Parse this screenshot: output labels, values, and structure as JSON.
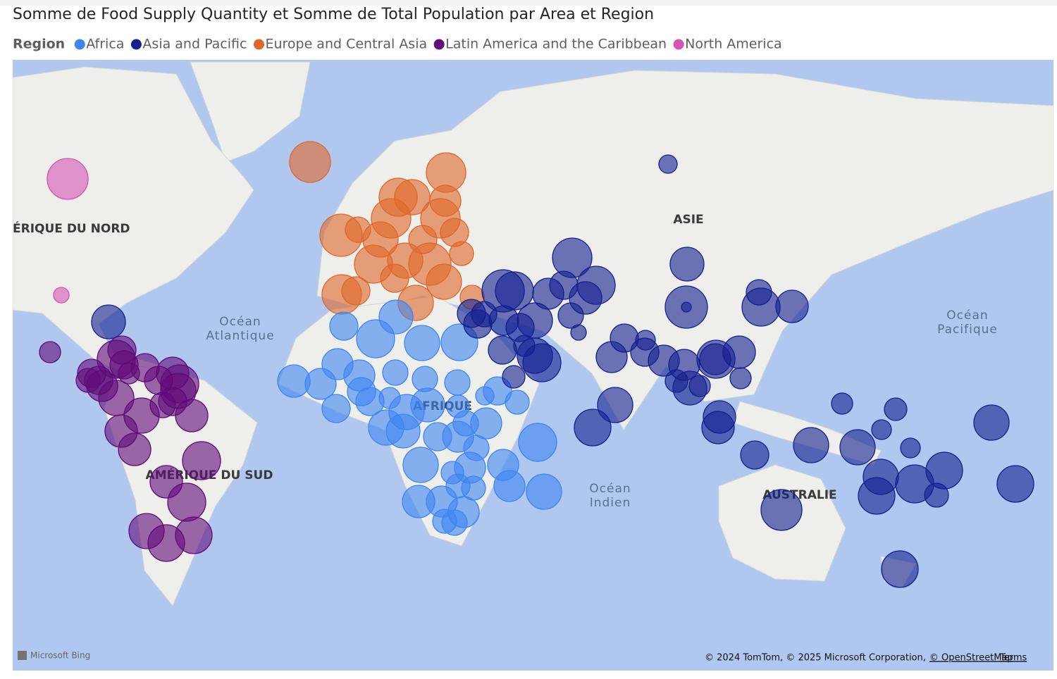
{
  "header": {
    "title": "Somme de Food Supply Quantity et Somme de Total Population par Area et Region"
  },
  "legend": {
    "title": "Region",
    "items": [
      {
        "name": "Africa",
        "color": "#3d86f2"
      },
      {
        "name": "Asia and Pacific",
        "color": "#14208f"
      },
      {
        "name": "Europe and Central Asia",
        "color": "#e0672a"
      },
      {
        "name": "Latin America and the Caribbean",
        "color": "#600a78"
      },
      {
        "name": "North America",
        "color": "#d455b3"
      }
    ]
  },
  "map": {
    "continents": [
      "ÉRIQUE DU NORD",
      "ASIE",
      "AFRIQUE",
      "AMÉRIQUE DU SUD",
      "AUSTRALIE"
    ],
    "oceans": [
      {
        "lines": [
          "Océan",
          "Atlantique"
        ]
      },
      {
        "lines": [
          "Océan",
          "Pacifique"
        ]
      },
      {
        "lines": [
          "Océan",
          "Indien"
        ]
      }
    ],
    "brand": "Microsoft Bing",
    "attribution": {
      "text": "© 2024 TomTom, © 2025 Microsoft Corporation,",
      "link": "© OpenStreetMap",
      "terms": "Terms"
    }
  }
}
